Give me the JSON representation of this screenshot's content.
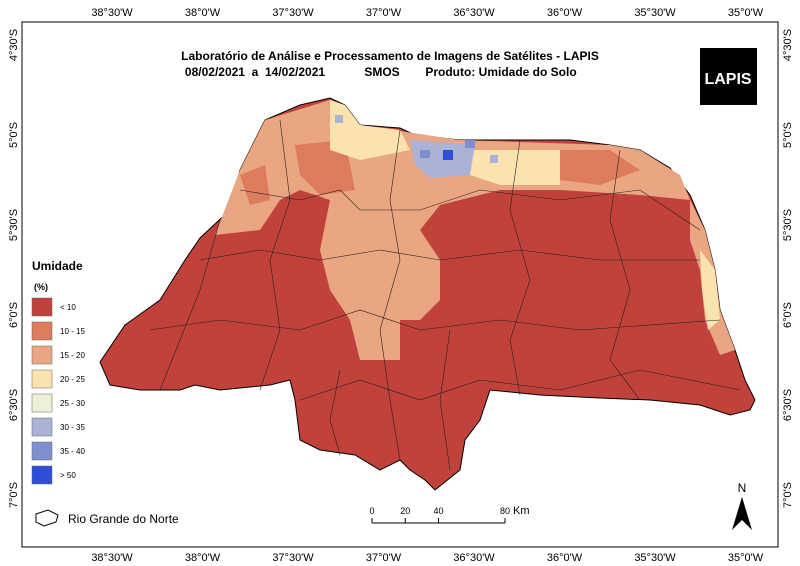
{
  "header": {
    "title": "Laboratório de Análise e Processamento de Imagens de Satélites - LAPIS",
    "dates": "08/02/2021  a  14/02/2021",
    "sensor": "SMOS",
    "product": "Produto: Umidade do Solo"
  },
  "logo": "LAPIS",
  "grid_labels": {
    "longitude": [
      "38°30'W",
      "38°0'W",
      "37°30'W",
      "37°0'W",
      "36°30'W",
      "36°0'W",
      "35°30'W",
      "35°0'W"
    ],
    "latitude": [
      "4°30'S",
      "5°0'S",
      "5°30'S",
      "6°0'S",
      "6°30'S",
      "7°0'S"
    ]
  },
  "legend": {
    "title": "Umidade",
    "unit": "(%)",
    "items": [
      {
        "label": "< 10",
        "color": "#c1423a"
      },
      {
        "label": "10 - 15",
        "color": "#dd7b5d"
      },
      {
        "label": "15 - 20",
        "color": "#eaa683"
      },
      {
        "label": "20 - 25",
        "color": "#fbe3b0"
      },
      {
        "label": "25 - 30",
        "color": "#eef0d8"
      },
      {
        "label": "30 - 35",
        "color": "#aab2d6"
      },
      {
        "label": "35 - 40",
        "color": "#7e8ed0"
      },
      {
        "label": "> 50",
        "color": "#2d4fd8"
      }
    ]
  },
  "scale_bar": {
    "ticks": [
      0,
      20,
      40,
      80
    ],
    "unit": "Km"
  },
  "north": "N",
  "boundary_label": "Rio Grande do Norte"
}
